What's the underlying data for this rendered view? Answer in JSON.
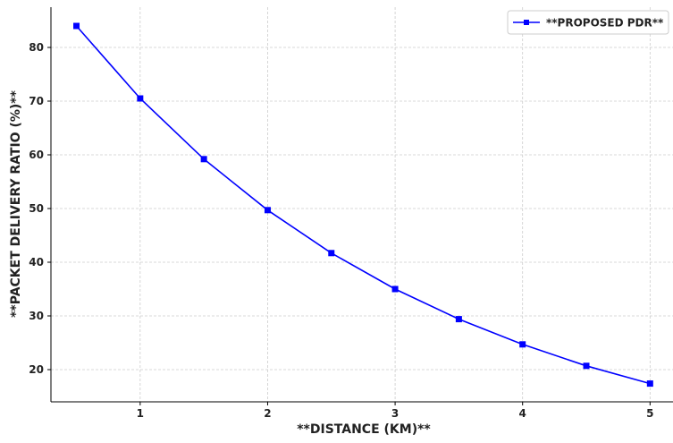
{
  "chart_data": {
    "type": "line",
    "xlabel": "**DISTANCE (KM)**",
    "ylabel": "**PACKET DELIVERY RATIO (%)**",
    "x_ticks": [
      "1",
      "2",
      "3",
      "4",
      "5"
    ],
    "y_ticks": [
      "20",
      "30",
      "40",
      "50",
      "60",
      "70",
      "80"
    ],
    "xlim": [
      0.3,
      5.18
    ],
    "ylim": [
      14.0,
      87.5
    ],
    "grid": true,
    "legend_position": "top-right",
    "series": [
      {
        "name": "**PROPOSED PDR**",
        "color": "#0000ff",
        "marker": "square",
        "x": [
          0.5,
          1.0,
          1.5,
          2.0,
          2.5,
          3.0,
          3.5,
          4.0,
          4.5,
          5.0
        ],
        "y": [
          84.0,
          70.5,
          59.2,
          49.7,
          41.7,
          35.0,
          29.4,
          24.7,
          20.7,
          17.4
        ]
      }
    ]
  }
}
